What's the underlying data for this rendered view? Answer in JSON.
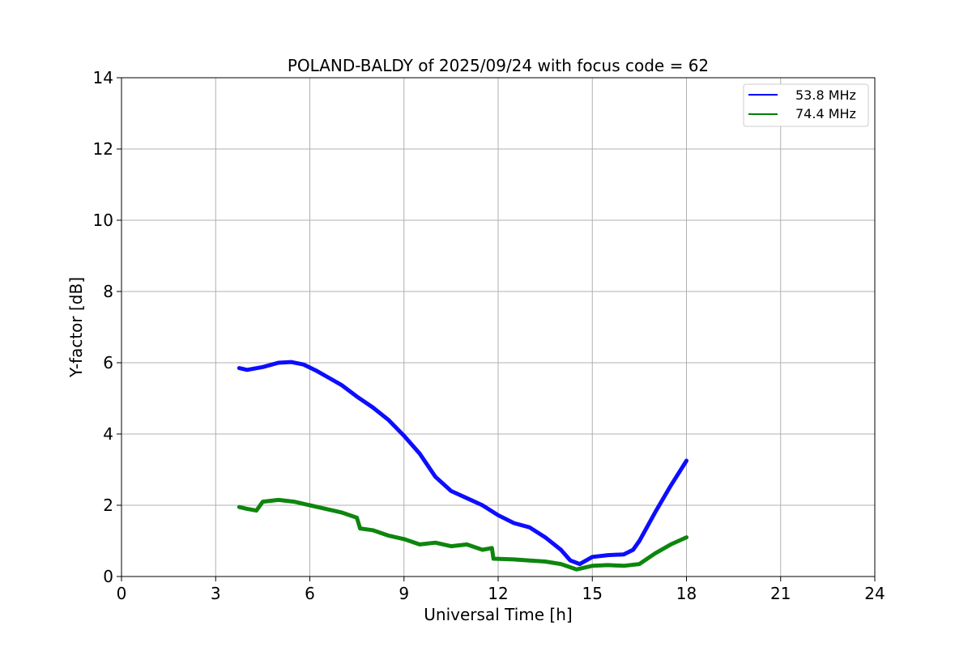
{
  "chart_data": {
    "type": "line",
    "title": "POLAND-BALDY of 2025/09/24 with focus code = 62",
    "xlabel": "Universal Time [h]",
    "ylabel": "Y-factor [dB]",
    "xlim": [
      0,
      24
    ],
    "ylim": [
      0,
      14
    ],
    "xticks": [
      0,
      3,
      6,
      9,
      12,
      15,
      18,
      21,
      24
    ],
    "yticks": [
      0,
      2,
      4,
      6,
      8,
      10,
      12,
      14
    ],
    "grid": true,
    "legend_position": "top-right",
    "series": [
      {
        "name": "53.8 MHz",
        "color": "#0000ff",
        "points": [
          [
            3.75,
            5.85
          ],
          [
            4.0,
            5.8
          ],
          [
            4.5,
            5.88
          ],
          [
            5.0,
            6.0
          ],
          [
            5.4,
            6.02
          ],
          [
            5.8,
            5.95
          ],
          [
            6.2,
            5.78
          ],
          [
            6.6,
            5.58
          ],
          [
            7.0,
            5.38
          ],
          [
            7.5,
            5.05
          ],
          [
            8.0,
            4.75
          ],
          [
            8.5,
            4.4
          ],
          [
            9.0,
            3.95
          ],
          [
            9.5,
            3.45
          ],
          [
            10.0,
            2.8
          ],
          [
            10.5,
            2.4
          ],
          [
            11.0,
            2.2
          ],
          [
            11.5,
            2.0
          ],
          [
            12.0,
            1.72
          ],
          [
            12.5,
            1.5
          ],
          [
            13.0,
            1.38
          ],
          [
            13.5,
            1.1
          ],
          [
            14.0,
            0.75
          ],
          [
            14.3,
            0.45
          ],
          [
            14.6,
            0.35
          ],
          [
            15.0,
            0.55
          ],
          [
            15.5,
            0.6
          ],
          [
            16.0,
            0.62
          ],
          [
            16.3,
            0.75
          ],
          [
            16.5,
            1.0
          ],
          [
            17.0,
            1.8
          ],
          [
            17.5,
            2.55
          ],
          [
            18.0,
            3.25
          ]
        ]
      },
      {
        "name": "74.4 MHz",
        "color": "#008000",
        "points": [
          [
            3.75,
            1.95
          ],
          [
            4.0,
            1.9
          ],
          [
            4.3,
            1.85
          ],
          [
            4.5,
            2.1
          ],
          [
            5.0,
            2.15
          ],
          [
            5.5,
            2.1
          ],
          [
            6.0,
            2.0
          ],
          [
            6.5,
            1.9
          ],
          [
            7.0,
            1.8
          ],
          [
            7.5,
            1.65
          ],
          [
            7.6,
            1.35
          ],
          [
            8.0,
            1.3
          ],
          [
            8.5,
            1.15
          ],
          [
            9.0,
            1.05
          ],
          [
            9.5,
            0.9
          ],
          [
            10.0,
            0.95
          ],
          [
            10.5,
            0.85
          ],
          [
            11.0,
            0.9
          ],
          [
            11.5,
            0.75
          ],
          [
            11.8,
            0.8
          ],
          [
            11.85,
            0.5
          ],
          [
            12.5,
            0.48
          ],
          [
            13.0,
            0.45
          ],
          [
            13.5,
            0.42
          ],
          [
            14.0,
            0.35
          ],
          [
            14.5,
            0.2
          ],
          [
            15.0,
            0.3
          ],
          [
            15.5,
            0.32
          ],
          [
            16.0,
            0.3
          ],
          [
            16.5,
            0.35
          ],
          [
            17.0,
            0.65
          ],
          [
            17.5,
            0.9
          ],
          [
            18.0,
            1.1
          ]
        ]
      }
    ]
  }
}
